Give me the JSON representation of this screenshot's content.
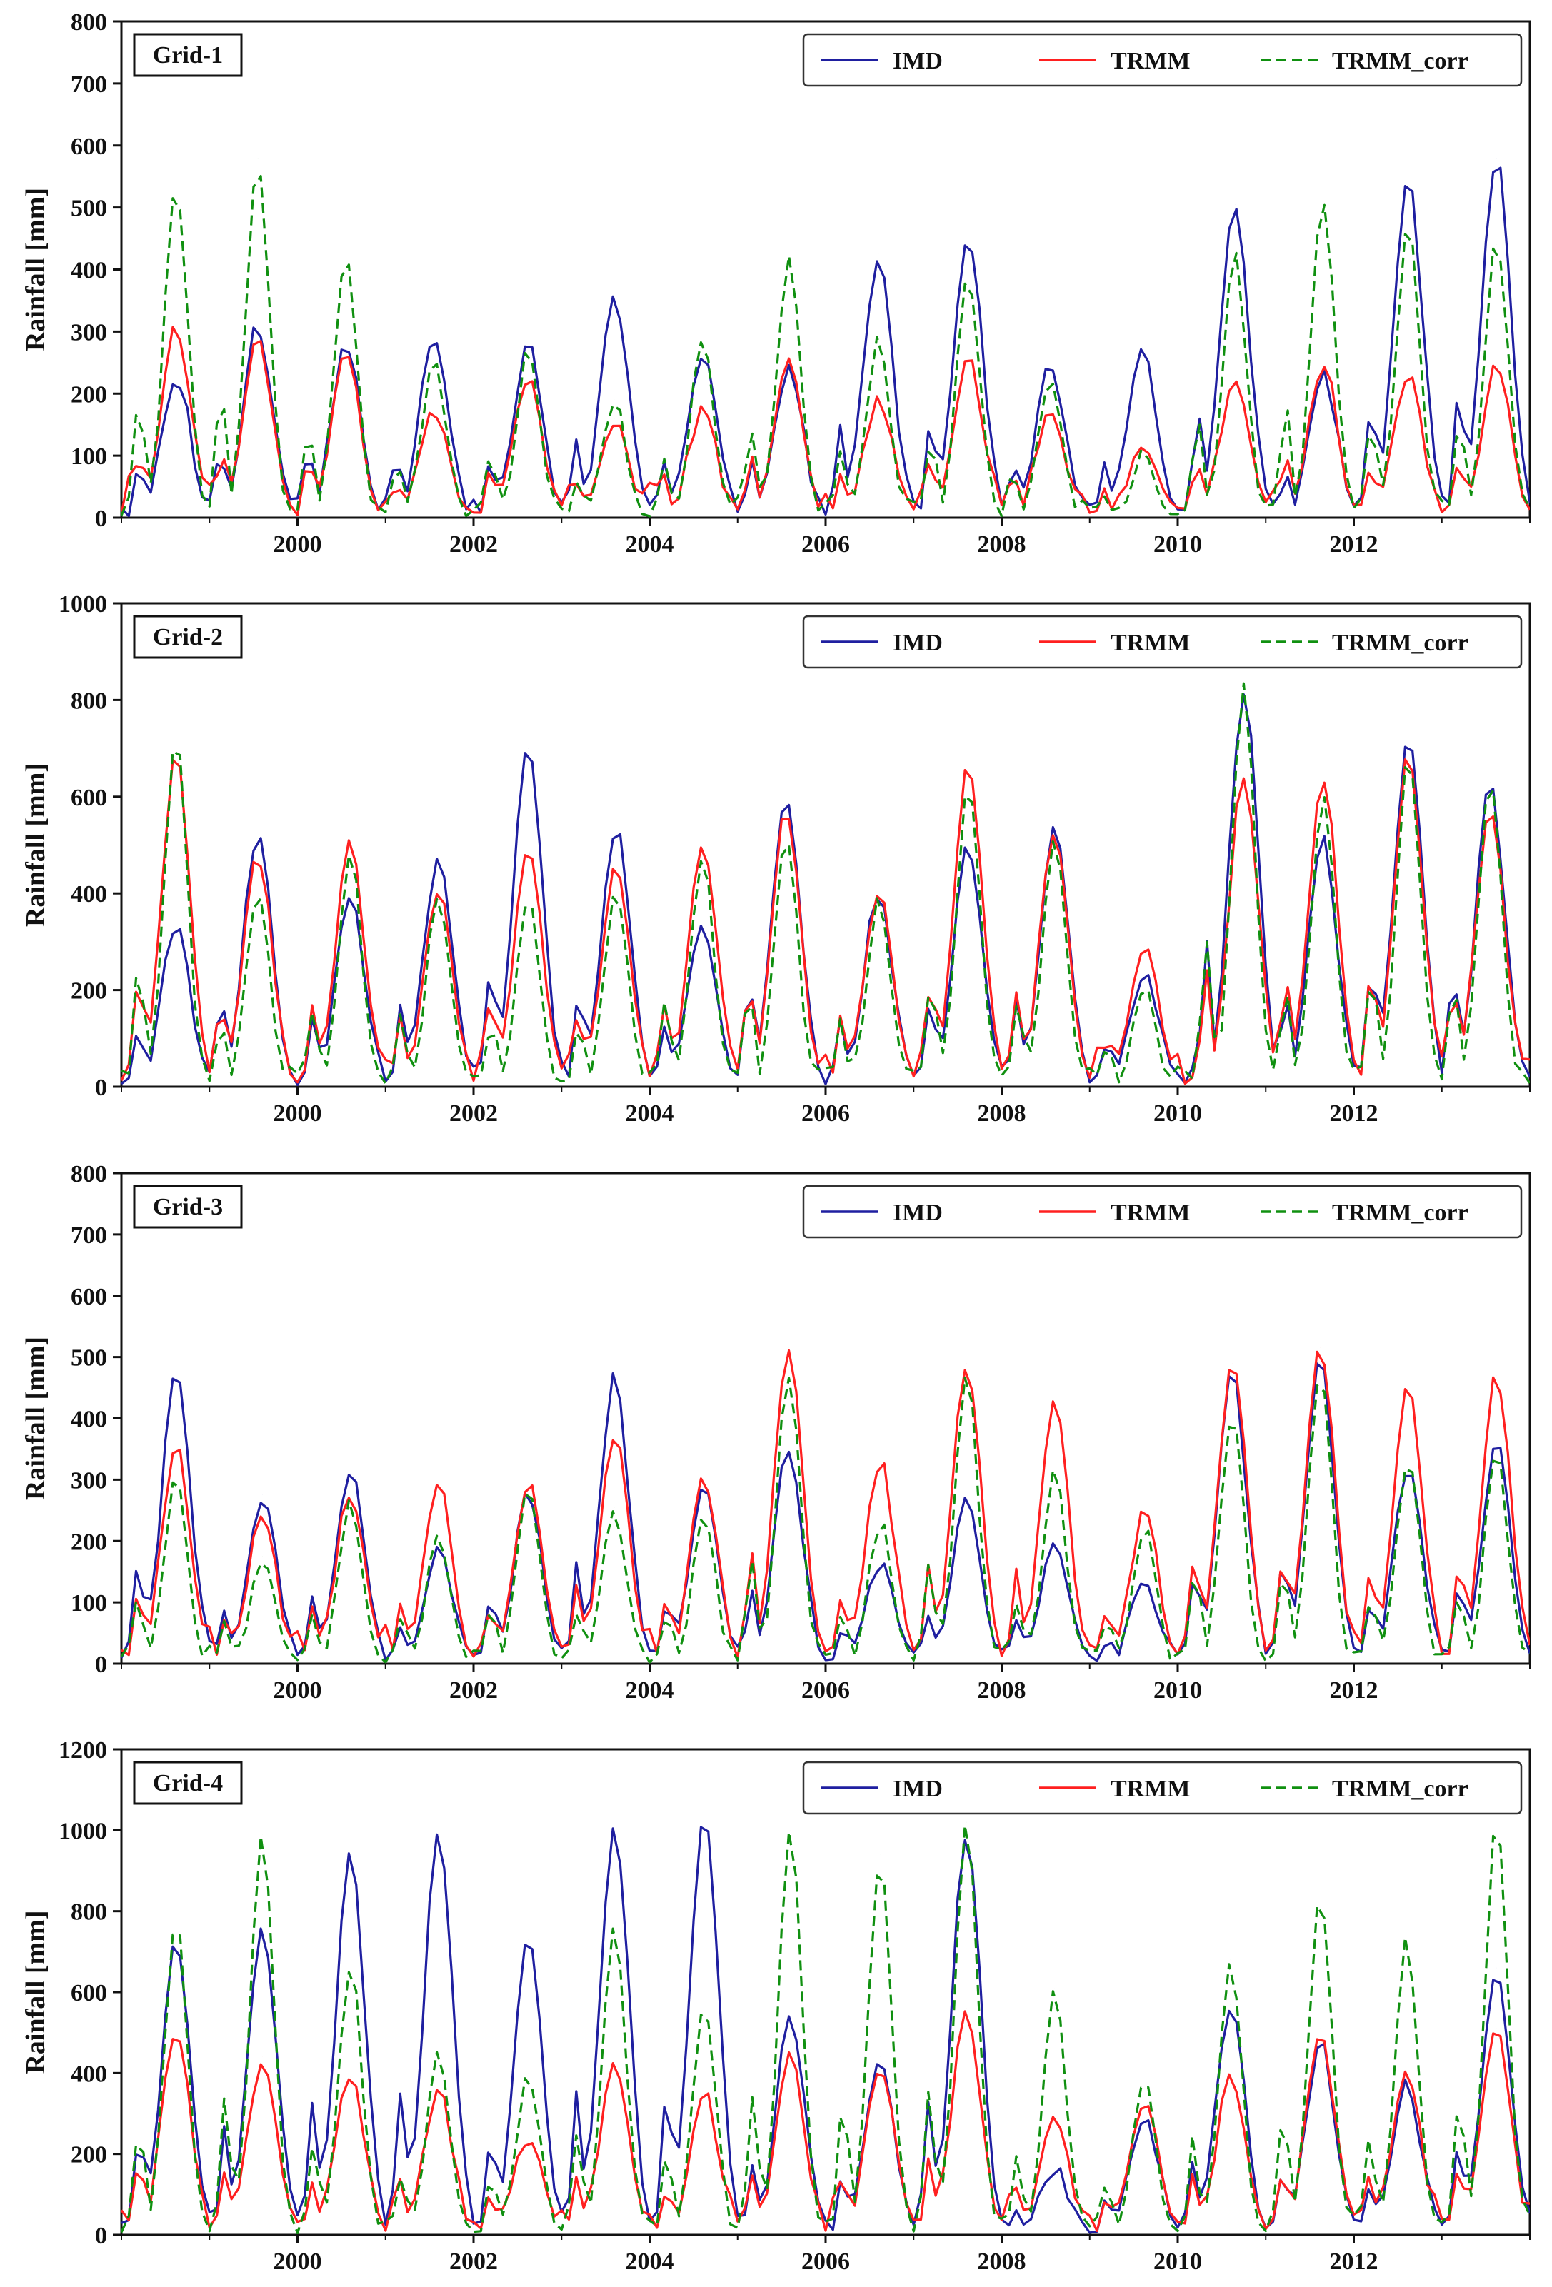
{
  "figure": {
    "ylabel": "Rainfall [mm]",
    "legend_labels": [
      "IMD",
      "TRMM",
      "TRMM_corr"
    ],
    "x_ticks": [
      "2000",
      "2002",
      "2004",
      "2006",
      "2008",
      "2010",
      "2012"
    ]
  },
  "colors": {
    "IMD": "#1f1fa0",
    "TRMM": "#ff2020",
    "TRMM_corr": "#109010"
  },
  "chart_data": [
    {
      "type": "line",
      "title": "Grid-1",
      "xlabel": "",
      "ylabel": "Rainfall [mm]",
      "xlim": [
        1998.0,
        2014.0
      ],
      "ylim": [
        0,
        800
      ],
      "yticks": [
        0,
        100,
        200,
        300,
        400,
        500,
        600,
        700,
        800
      ],
      "xticks": [
        2000,
        2002,
        2004,
        2006,
        2008,
        2010,
        2012
      ],
      "legend_position": "top-right",
      "peaks": [
        {
          "t": 1998.62,
          "imd": 230,
          "trmm": 310,
          "corr": 540
        },
        {
          "t": 1999.55,
          "imd": 310,
          "trmm": 290,
          "corr": 580
        },
        {
          "t": 2000.55,
          "imd": 285,
          "trmm": 260,
          "corr": 425
        },
        {
          "t": 2001.55,
          "imd": 290,
          "trmm": 170,
          "corr": 265
        },
        {
          "t": 2002.62,
          "imd": 275,
          "trmm": 225,
          "corr": 270
        },
        {
          "t": 2003.6,
          "imd": 350,
          "trmm": 160,
          "corr": 190
        },
        {
          "t": 2004.6,
          "imd": 265,
          "trmm": 170,
          "corr": 280
        },
        {
          "t": 2005.58,
          "imd": 240,
          "trmm": 250,
          "corr": 415
        },
        {
          "t": 2006.6,
          "imd": 425,
          "trmm": 185,
          "corr": 285
        },
        {
          "t": 2007.62,
          "imd": 450,
          "trmm": 255,
          "corr": 385
        },
        {
          "t": 2008.55,
          "imd": 245,
          "trmm": 170,
          "corr": 220
        },
        {
          "t": 2009.6,
          "imd": 275,
          "trmm": 110,
          "corr": 100
        },
        {
          "t": 2010.65,
          "imd": 505,
          "trmm": 230,
          "corr": 420
        },
        {
          "t": 2011.65,
          "imd": 230,
          "trmm": 250,
          "corr": 505
        },
        {
          "t": 2012.62,
          "imd": 540,
          "trmm": 230,
          "corr": 470
        },
        {
          "t": 2013.62,
          "imd": 580,
          "trmm": 250,
          "corr": 440
        }
      ]
    },
    {
      "type": "line",
      "title": "Grid-2",
      "xlabel": "",
      "ylabel": "Rainfall [mm]",
      "xlim": [
        1998.0,
        2014.0
      ],
      "ylim": [
        0,
        1000
      ],
      "yticks": [
        0,
        200,
        400,
        600,
        800,
        1000
      ],
      "xticks": [
        2000,
        2002,
        2004,
        2006,
        2008,
        2010,
        2012
      ],
      "legend_position": "top-right",
      "peaks": [
        {
          "t": 1998.62,
          "imd": 330,
          "trmm": 680,
          "corr": 720
        },
        {
          "t": 1999.55,
          "imd": 525,
          "trmm": 480,
          "corr": 400
        },
        {
          "t": 2000.6,
          "imd": 400,
          "trmm": 500,
          "corr": 480
        },
        {
          "t": 2001.6,
          "imd": 475,
          "trmm": 405,
          "corr": 400
        },
        {
          "t": 2002.62,
          "imd": 700,
          "trmm": 500,
          "corr": 380
        },
        {
          "t": 2003.62,
          "imd": 530,
          "trmm": 460,
          "corr": 400
        },
        {
          "t": 2004.6,
          "imd": 330,
          "trmm": 500,
          "corr": 480
        },
        {
          "t": 2005.55,
          "imd": 610,
          "trmm": 580,
          "corr": 530
        },
        {
          "t": 2006.6,
          "imd": 400,
          "trmm": 410,
          "corr": 380
        },
        {
          "t": 2007.62,
          "imd": 500,
          "trmm": 660,
          "corr": 640
        },
        {
          "t": 2008.6,
          "imd": 525,
          "trmm": 535,
          "corr": 520
        },
        {
          "t": 2009.62,
          "imd": 240,
          "trmm": 290,
          "corr": 200
        },
        {
          "t": 2010.75,
          "imd": 820,
          "trmm": 650,
          "corr": 820
        },
        {
          "t": 2011.65,
          "imd": 510,
          "trmm": 640,
          "corr": 600
        },
        {
          "t": 2012.62,
          "imd": 720,
          "trmm": 680,
          "corr": 690
        },
        {
          "t": 2013.55,
          "imd": 620,
          "trmm": 580,
          "corr": 630
        }
      ]
    },
    {
      "type": "line",
      "title": "Grid-3",
      "xlabel": "",
      "ylabel": "Rainfall [mm]",
      "xlim": [
        1998.0,
        2014.0
      ],
      "ylim": [
        0,
        800
      ],
      "yticks": [
        0,
        100,
        200,
        300,
        400,
        500,
        600,
        700,
        800
      ],
      "xticks": [
        2000,
        2002,
        2004,
        2006,
        2008,
        2010,
        2012
      ],
      "legend_position": "top-right",
      "peaks": [
        {
          "t": 1998.62,
          "imd": 475,
          "trmm": 360,
          "corr": 300
        },
        {
          "t": 1999.6,
          "imd": 275,
          "trmm": 240,
          "corr": 175
        },
        {
          "t": 2000.6,
          "imd": 310,
          "trmm": 280,
          "corr": 260
        },
        {
          "t": 2001.6,
          "imd": 190,
          "trmm": 295,
          "corr": 215
        },
        {
          "t": 2002.62,
          "imd": 280,
          "trmm": 295,
          "corr": 285
        },
        {
          "t": 2003.6,
          "imd": 465,
          "trmm": 375,
          "corr": 255
        },
        {
          "t": 2004.62,
          "imd": 300,
          "trmm": 300,
          "corr": 240
        },
        {
          "t": 2005.58,
          "imd": 350,
          "trmm": 515,
          "corr": 470
        },
        {
          "t": 2006.62,
          "imd": 160,
          "trmm": 330,
          "corr": 230
        },
        {
          "t": 2007.6,
          "imd": 260,
          "trmm": 490,
          "corr": 475
        },
        {
          "t": 2008.6,
          "imd": 195,
          "trmm": 425,
          "corr": 310
        },
        {
          "t": 2009.62,
          "imd": 130,
          "trmm": 245,
          "corr": 220
        },
        {
          "t": 2010.62,
          "imd": 470,
          "trmm": 490,
          "corr": 410
        },
        {
          "t": 2011.62,
          "imd": 490,
          "trmm": 515,
          "corr": 470
        },
        {
          "t": 2012.62,
          "imd": 320,
          "trmm": 455,
          "corr": 340
        },
        {
          "t": 2013.62,
          "imd": 360,
          "trmm": 470,
          "corr": 350
        }
      ]
    },
    {
      "type": "line",
      "title": "Grid-4",
      "xlabel": "",
      "ylabel": "Rainfall [mm]",
      "xlim": [
        1998.0,
        2014.0
      ],
      "ylim": [
        0,
        1200
      ],
      "yticks": [
        0,
        200,
        400,
        600,
        800,
        1000,
        1200
      ],
      "xticks": [
        2000,
        2002,
        2004,
        2006,
        2008,
        2010,
        2012
      ],
      "legend_position": "top-right",
      "peaks": [
        {
          "t": 1998.62,
          "imd": 720,
          "trmm": 500,
          "corr": 790
        },
        {
          "t": 1999.6,
          "imd": 760,
          "trmm": 440,
          "corr": 990
        },
        {
          "t": 2000.6,
          "imd": 940,
          "trmm": 390,
          "corr": 670
        },
        {
          "t": 2001.6,
          "imd": 990,
          "trmm": 360,
          "corr": 460
        },
        {
          "t": 2002.62,
          "imd": 730,
          "trmm": 240,
          "corr": 400
        },
        {
          "t": 2003.6,
          "imd": 1010,
          "trmm": 420,
          "corr": 750
        },
        {
          "t": 2004.62,
          "imd": 1030,
          "trmm": 350,
          "corr": 580
        },
        {
          "t": 2005.6,
          "imd": 540,
          "trmm": 450,
          "corr": 1000
        },
        {
          "t": 2006.62,
          "imd": 440,
          "trmm": 420,
          "corr": 940
        },
        {
          "t": 2007.6,
          "imd": 990,
          "trmm": 560,
          "corr": 1020
        },
        {
          "t": 2008.6,
          "imd": 160,
          "trmm": 300,
          "corr": 610
        },
        {
          "t": 2009.62,
          "imd": 290,
          "trmm": 320,
          "corr": 370
        },
        {
          "t": 2010.6,
          "imd": 570,
          "trmm": 390,
          "corr": 680
        },
        {
          "t": 2011.62,
          "imd": 480,
          "trmm": 510,
          "corr": 830
        },
        {
          "t": 2012.6,
          "imd": 370,
          "trmm": 410,
          "corr": 730
        },
        {
          "t": 2013.62,
          "imd": 660,
          "trmm": 510,
          "corr": 1010
        }
      ]
    }
  ]
}
